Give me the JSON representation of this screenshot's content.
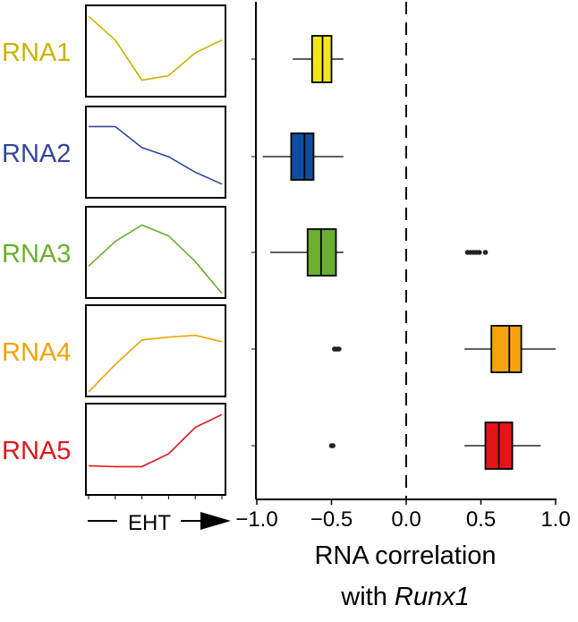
{
  "chart_data": [
    {
      "type": "line",
      "xlabel": "EHT",
      "panels": [
        {
          "name": "RNA1",
          "color": "#c8b400",
          "values": [
            0.88,
            0.62,
            0.18,
            0.23,
            0.48,
            0.62
          ]
        },
        {
          "name": "RNA2",
          "color": "#33479b",
          "values": [
            0.78,
            0.78,
            0.55,
            0.45,
            0.28,
            0.15
          ]
        },
        {
          "name": "RNA3",
          "color": "#6aaf2d",
          "values": [
            0.35,
            0.62,
            0.8,
            0.68,
            0.4,
            0.05
          ]
        },
        {
          "name": "RNA4",
          "color": "#f0a300",
          "values": [
            0.05,
            0.35,
            0.62,
            0.65,
            0.67,
            0.6
          ]
        },
        {
          "name": "RNA5",
          "color": "#e0161b",
          "values": [
            0.32,
            0.31,
            0.31,
            0.45,
            0.74,
            0.88
          ]
        }
      ]
    },
    {
      "type": "box",
      "xlabel_line1": "RNA correlation",
      "xlabel_line2_prefix": "with ",
      "xlabel_line2_italic": "Runx1",
      "xlim": [
        -1.02,
        1.0
      ],
      "xticks": [
        -1.0,
        -0.5,
        0.0,
        0.5,
        1.0
      ],
      "xtick_labels": [
        "−1.0",
        "−0.5",
        "0.0",
        "0.5",
        "1.0"
      ],
      "reference_line": 0.0,
      "boxes": [
        {
          "row": "RNA1",
          "color": "#f5e61c",
          "whisker_low": -0.76,
          "q1": -0.63,
          "median": -0.56,
          "q3": -0.5,
          "whisker_high": -0.42,
          "outliers": []
        },
        {
          "row": "RNA2",
          "color": "#0d4ea0",
          "whisker_low": -0.96,
          "q1": -0.77,
          "median": -0.68,
          "q3": -0.62,
          "whisker_high": -0.42,
          "outliers": []
        },
        {
          "row": "RNA3",
          "color": "#6aaf2d",
          "whisker_low": -0.91,
          "q1": -0.66,
          "median": -0.57,
          "q3": -0.47,
          "whisker_high": -0.42,
          "outliers": [
            0.41,
            0.43,
            0.45,
            0.47,
            0.49,
            0.53
          ]
        },
        {
          "row": "RNA4",
          "color": "#f7a30b",
          "whisker_low": 0.39,
          "q1": 0.57,
          "median": 0.69,
          "q3": 0.77,
          "whisker_high": 1.0,
          "outliers": [
            -0.48,
            -0.47,
            -0.46,
            -0.45
          ]
        },
        {
          "row": "RNA5",
          "color": "#e6131a",
          "whisker_low": 0.39,
          "q1": 0.53,
          "median": 0.62,
          "q3": 0.71,
          "whisker_high": 0.9,
          "outliers": [
            -0.5,
            -0.49
          ]
        }
      ]
    }
  ]
}
